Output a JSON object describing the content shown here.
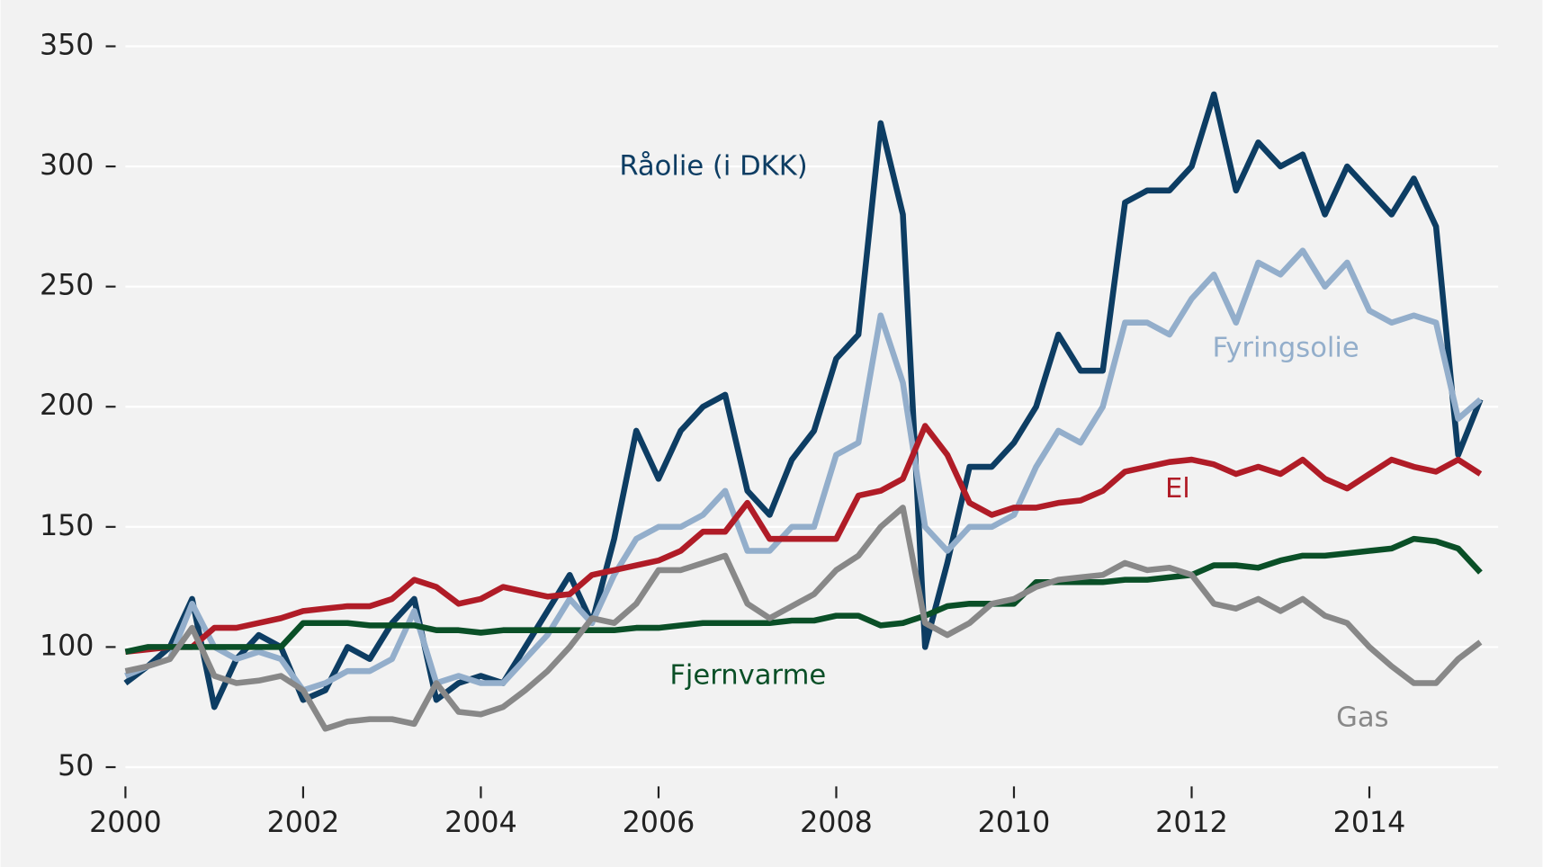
{
  "chart_data": {
    "type": "line",
    "x": [
      2000,
      2000.25,
      2000.5,
      2000.75,
      2001,
      2001.25,
      2001.5,
      2001.75,
      2002,
      2002.25,
      2002.5,
      2002.75,
      2003,
      2003.25,
      2003.5,
      2003.75,
      2004,
      2004.25,
      2004.5,
      2004.75,
      2005,
      2005.25,
      2005.5,
      2005.75,
      2006,
      2006.25,
      2006.5,
      2006.75,
      2007,
      2007.25,
      2007.5,
      2007.75,
      2008,
      2008.25,
      2008.5,
      2008.75,
      2009,
      2009.25,
      2009.5,
      2009.75,
      2010,
      2010.25,
      2010.5,
      2010.75,
      2011,
      2011.25,
      2011.5,
      2011.75,
      2012,
      2012.25,
      2012.5,
      2012.75,
      2013,
      2013.25,
      2013.5,
      2013.75,
      2014,
      2014.25,
      2014.5,
      2014.75,
      2015,
      2015.25
    ],
    "series": [
      {
        "name": "Råolie (i DKK)",
        "color": "#0d3d63",
        "values": [
          85,
          92,
          100,
          120,
          75,
          95,
          105,
          100,
          78,
          82,
          100,
          95,
          110,
          120,
          78,
          85,
          88,
          85,
          100,
          115,
          130,
          110,
          145,
          190,
          170,
          190,
          200,
          205,
          165,
          155,
          178,
          190,
          220,
          230,
          318,
          280,
          100,
          135,
          175,
          175,
          185,
          200,
          230,
          215,
          215,
          285,
          290,
          290,
          300,
          330,
          290,
          310,
          300,
          305,
          280,
          300,
          290,
          280,
          295,
          275,
          180,
          203
        ]
      },
      {
        "name": "Fyringsolie",
        "color": "#93aecb",
        "values": [
          88,
          92,
          95,
          118,
          100,
          95,
          98,
          95,
          82,
          85,
          90,
          90,
          95,
          115,
          85,
          88,
          85,
          85,
          95,
          105,
          120,
          110,
          130,
          145,
          150,
          150,
          155,
          165,
          140,
          140,
          150,
          150,
          180,
          185,
          238,
          210,
          150,
          140,
          150,
          150,
          155,
          175,
          190,
          185,
          200,
          235,
          235,
          230,
          245,
          255,
          235,
          260,
          255,
          265,
          250,
          260,
          240,
          235,
          238,
          235,
          195,
          203
        ]
      },
      {
        "name": "El",
        "color": "#b01c27",
        "values": [
          98,
          99,
          100,
          100,
          108,
          108,
          110,
          112,
          115,
          116,
          117,
          117,
          120,
          128,
          125,
          118,
          120,
          125,
          123,
          121,
          122,
          130,
          132,
          134,
          136,
          140,
          148,
          148,
          160,
          145,
          145,
          145,
          145,
          163,
          165,
          170,
          192,
          180,
          160,
          155,
          158,
          158,
          160,
          161,
          165,
          173,
          175,
          177,
          178,
          176,
          172,
          175,
          172,
          178,
          170,
          166,
          172,
          178,
          175,
          173,
          178,
          172
        ]
      },
      {
        "name": "Fjernvarme",
        "color": "#0a4f27",
        "values": [
          98,
          100,
          100,
          100,
          100,
          100,
          100,
          100,
          110,
          110,
          110,
          109,
          109,
          109,
          107,
          107,
          106,
          107,
          107,
          107,
          107,
          107,
          107,
          108,
          108,
          109,
          110,
          110,
          110,
          110,
          111,
          111,
          113,
          113,
          109,
          110,
          113,
          117,
          118,
          118,
          118,
          127,
          127,
          127,
          127,
          128,
          128,
          129,
          130,
          134,
          134,
          133,
          136,
          138,
          138,
          139,
          140,
          141,
          145,
          144,
          141,
          131
        ]
      },
      {
        "name": "Gas",
        "color": "#888888",
        "values": [
          90,
          92,
          95,
          108,
          88,
          85,
          86,
          88,
          82,
          66,
          69,
          70,
          70,
          68,
          85,
          73,
          72,
          75,
          82,
          90,
          100,
          112,
          110,
          118,
          132,
          132,
          135,
          138,
          118,
          112,
          117,
          122,
          132,
          138,
          150,
          158,
          110,
          105,
          110,
          118,
          120,
          125,
          128,
          129,
          130,
          135,
          132,
          133,
          130,
          118,
          116,
          120,
          115,
          120,
          113,
          110,
          100,
          92,
          85,
          85,
          95,
          102
        ]
      }
    ],
    "xlim": [
      2000,
      2015.45
    ],
    "ylim": [
      42,
      366
    ],
    "xticks": [
      2000,
      2002,
      2004,
      2006,
      2008,
      2010,
      2012,
      2014
    ],
    "yticks": [
      50,
      100,
      150,
      200,
      250,
      300,
      350
    ],
    "grid": true
  }
}
